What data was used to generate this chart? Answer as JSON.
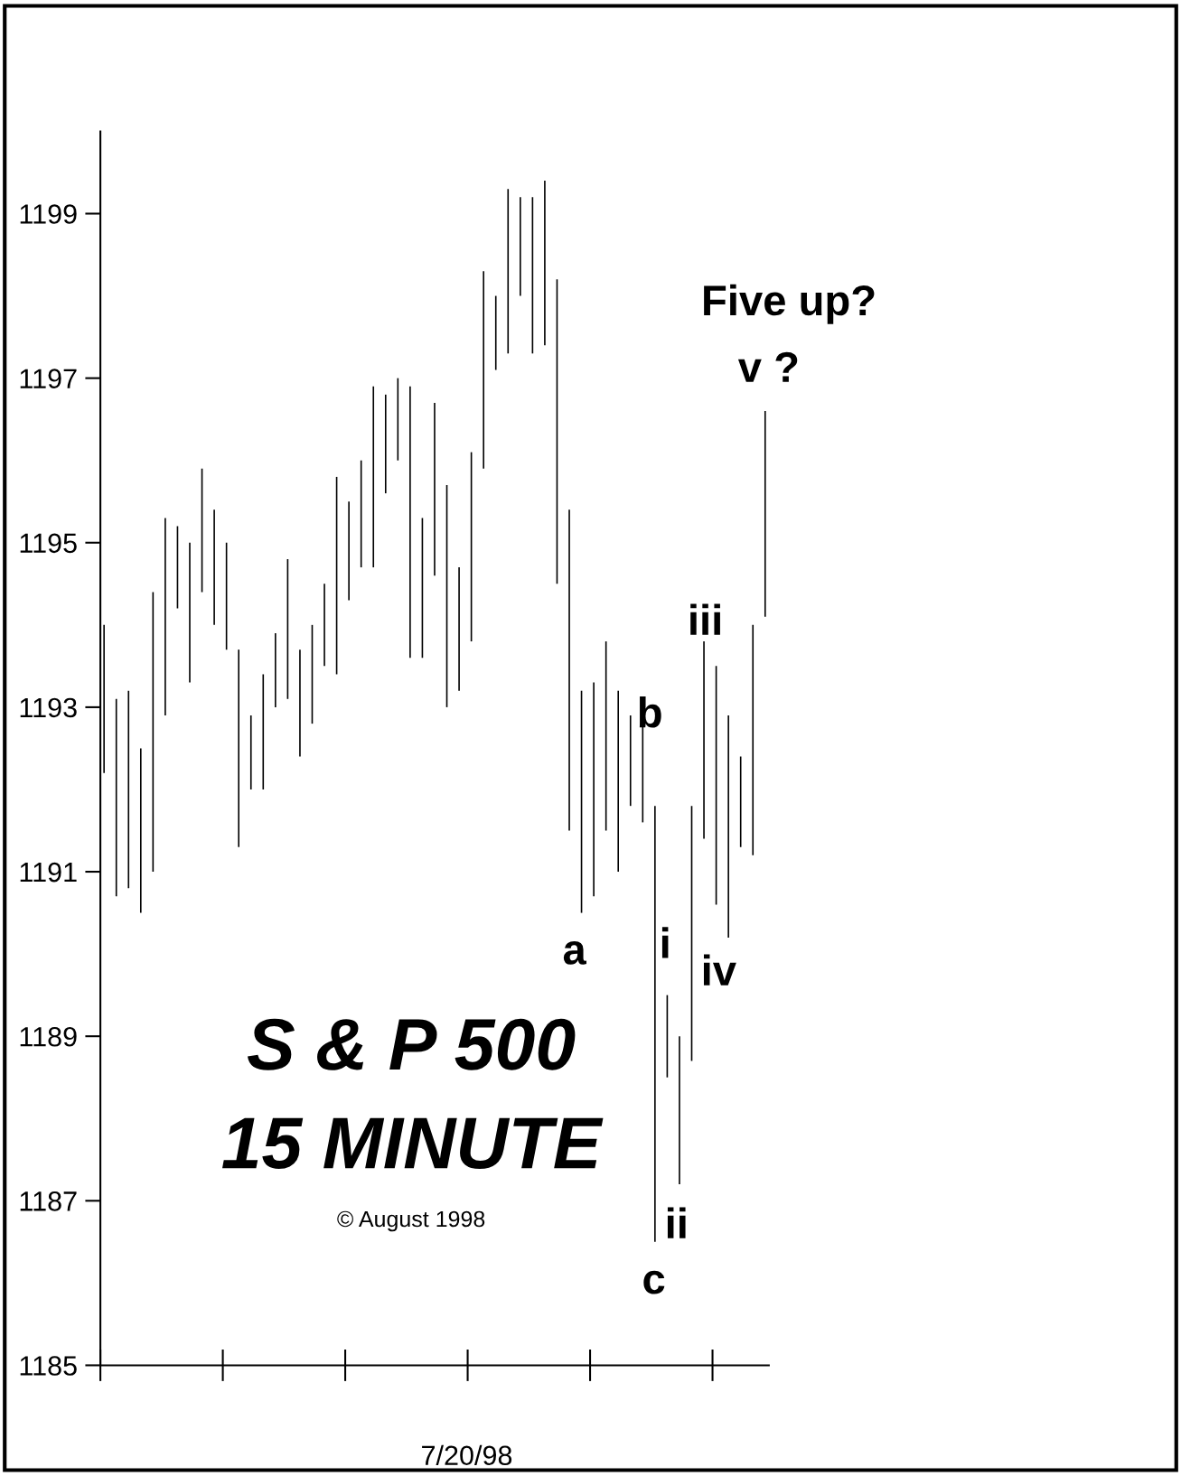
{
  "chart_data": {
    "type": "bar",
    "title": "S & P 500",
    "subtitle": "15 MINUTE",
    "categories": [
      null,
      null,
      null,
      null,
      null,
      null,
      null,
      null,
      null,
      null,
      null,
      null,
      null,
      null,
      null,
      null,
      null,
      null,
      null,
      null,
      null,
      null,
      null,
      null,
      null,
      null,
      null,
      null,
      null,
      null,
      null,
      null,
      null,
      null,
      null,
      null,
      null,
      null,
      null,
      null,
      null,
      null,
      null,
      null,
      null,
      null,
      null,
      null,
      null,
      null,
      null,
      null,
      null,
      null,
      null
    ],
    "base": [
      1192.2,
      1190.7,
      1190.8,
      1190.5,
      1191.0,
      1192.9,
      1194.2,
      1193.3,
      1194.4,
      1194.0,
      1193.7,
      1191.3,
      1192.0,
      1192.0,
      1193.0,
      1193.1,
      1192.4,
      1192.8,
      1193.5,
      1193.4,
      1194.3,
      1194.7,
      1194.7,
      1195.6,
      1196.0,
      1193.6,
      1193.6,
      1194.6,
      1193.0,
      1193.2,
      1193.8,
      1195.9,
      1197.1,
      1197.3,
      1198.0,
      1197.3,
      1197.4,
      1194.5,
      1191.5,
      1190.5,
      1190.7,
      1191.5,
      1191.0,
      1191.8,
      1191.6,
      1186.5,
      1188.5,
      1187.2,
      1188.7,
      1191.4,
      1190.6,
      1190.2,
      1191.3,
      1191.2,
      1194.1
    ],
    "values": [
      1.8,
      2.4,
      2.4,
      2.0,
      3.4,
      2.4,
      1.0,
      1.7,
      1.5,
      1.4,
      1.3,
      2.4,
      0.9,
      1.4,
      0.9,
      1.7,
      1.3,
      1.2,
      1.0,
      2.4,
      1.2,
      1.3,
      2.2,
      1.2,
      1.0,
      3.3,
      1.7,
      2.1,
      2.7,
      1.5,
      2.3,
      2.4,
      0.9,
      2.0,
      1.2,
      1.9,
      2.0,
      3.7,
      3.9,
      2.7,
      2.6,
      2.3,
      2.2,
      1.1,
      1.3,
      5.3,
      1.0,
      1.8,
      3.1,
      2.4,
      2.9,
      2.7,
      1.1,
      2.8,
      2.5
    ],
    "color": "#000000",
    "ylim": [
      1185,
      1200
    ],
    "yticks": [
      1185,
      1187,
      1189,
      1191,
      1193,
      1195,
      1197,
      1199
    ],
    "grid": false,
    "annotations": [
      "a",
      "b",
      "c",
      "i",
      "ii",
      "iii",
      "iv",
      "v ?",
      "Five up?",
      "© August 1998",
      "7/20/98"
    ]
  }
}
